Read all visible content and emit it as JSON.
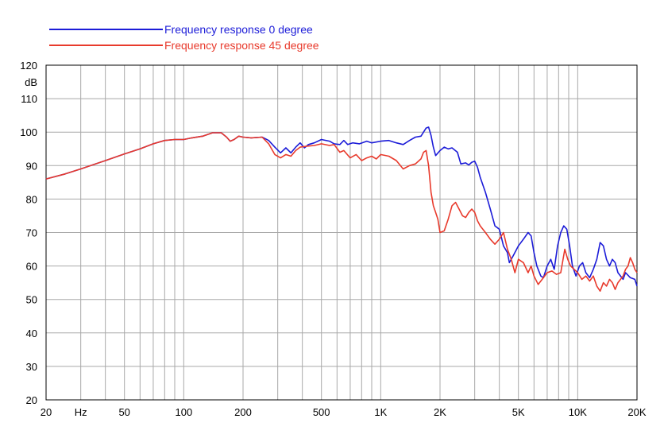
{
  "chart_data": {
    "type": "line",
    "x_scale": "log",
    "xlim": [
      20,
      20000
    ],
    "ylim": [
      20,
      120
    ],
    "y_unit": "dB",
    "grid": true,
    "legend_position": "top-left",
    "x_tick_labels": [
      {
        "value": 20,
        "label": "20"
      },
      {
        "value": 30,
        "label": "Hz"
      },
      {
        "value": 50,
        "label": "50"
      },
      {
        "value": 100,
        "label": "100"
      },
      {
        "value": 200,
        "label": "200"
      },
      {
        "value": 500,
        "label": "500"
      },
      {
        "value": 1000,
        "label": "1K"
      },
      {
        "value": 2000,
        "label": "2K"
      },
      {
        "value": 5000,
        "label": "5K"
      },
      {
        "value": 10000,
        "label": "10K"
      },
      {
        "value": 20000,
        "label": "20K"
      }
    ],
    "y_tick_labels": [
      {
        "value": 20,
        "label": "20"
      },
      {
        "value": 30,
        "label": "30"
      },
      {
        "value": 40,
        "label": "40"
      },
      {
        "value": 50,
        "label": "50"
      },
      {
        "value": 60,
        "label": "60"
      },
      {
        "value": 70,
        "label": "70"
      },
      {
        "value": 80,
        "label": "80"
      },
      {
        "value": 90,
        "label": "90"
      },
      {
        "value": 100,
        "label": "100"
      },
      {
        "value": 110,
        "label": "110"
      },
      {
        "value": 120,
        "label": "120"
      }
    ],
    "series": [
      {
        "name": "Frequency response 0 degree",
        "color": "#1c1cd8",
        "points": [
          [
            20,
            86
          ],
          [
            25,
            87.5
          ],
          [
            30,
            89
          ],
          [
            40,
            91.5
          ],
          [
            50,
            93.5
          ],
          [
            60,
            95
          ],
          [
            70,
            96.5
          ],
          [
            80,
            97.5
          ],
          [
            90,
            97.8
          ],
          [
            100,
            97.8
          ],
          [
            110,
            98.3
          ],
          [
            125,
            98.8
          ],
          [
            140,
            99.8
          ],
          [
            155,
            99.8
          ],
          [
            165,
            98.5
          ],
          [
            172,
            97.3
          ],
          [
            180,
            97.8
          ],
          [
            190,
            98.8
          ],
          [
            200,
            98.5
          ],
          [
            220,
            98.3
          ],
          [
            250,
            98.5
          ],
          [
            270,
            97.5
          ],
          [
            290,
            95.5
          ],
          [
            310,
            93.8
          ],
          [
            330,
            95.3
          ],
          [
            350,
            93.8
          ],
          [
            370,
            95.5
          ],
          [
            390,
            96.8
          ],
          [
            410,
            95.3
          ],
          [
            430,
            96.3
          ],
          [
            460,
            96.8
          ],
          [
            500,
            97.8
          ],
          [
            550,
            97.3
          ],
          [
            580,
            96.5
          ],
          [
            620,
            96.3
          ],
          [
            650,
            97.5
          ],
          [
            680,
            96.3
          ],
          [
            720,
            96.8
          ],
          [
            780,
            96.5
          ],
          [
            850,
            97.3
          ],
          [
            900,
            96.8
          ],
          [
            1000,
            97.3
          ],
          [
            1100,
            97.5
          ],
          [
            1200,
            96.8
          ],
          [
            1300,
            96.3
          ],
          [
            1400,
            97.5
          ],
          [
            1500,
            98.5
          ],
          [
            1600,
            98.8
          ],
          [
            1700,
            101.2
          ],
          [
            1750,
            101.5
          ],
          [
            1800,
            99
          ],
          [
            1850,
            95.5
          ],
          [
            1900,
            93
          ],
          [
            2000,
            94.5
          ],
          [
            2100,
            95.5
          ],
          [
            2200,
            95
          ],
          [
            2300,
            95.3
          ],
          [
            2450,
            94
          ],
          [
            2550,
            90.5
          ],
          [
            2700,
            90.8
          ],
          [
            2800,
            90.2
          ],
          [
            2900,
            91
          ],
          [
            3000,
            91.3
          ],
          [
            3100,
            89.5
          ],
          [
            3200,
            86.5
          ],
          [
            3400,
            82
          ],
          [
            3600,
            77
          ],
          [
            3800,
            72
          ],
          [
            4000,
            71
          ],
          [
            4200,
            66
          ],
          [
            4400,
            64
          ],
          [
            4500,
            61
          ],
          [
            4700,
            63
          ],
          [
            5000,
            66
          ],
          [
            5300,
            68
          ],
          [
            5600,
            70
          ],
          [
            5800,
            69
          ],
          [
            6000,
            64
          ],
          [
            6200,
            60
          ],
          [
            6500,
            57
          ],
          [
            6700,
            56.5
          ],
          [
            7000,
            60
          ],
          [
            7300,
            62
          ],
          [
            7600,
            59
          ],
          [
            7900,
            66
          ],
          [
            8200,
            70
          ],
          [
            8500,
            72
          ],
          [
            8800,
            71
          ],
          [
            9100,
            66
          ],
          [
            9400,
            60
          ],
          [
            9800,
            57
          ],
          [
            10200,
            60
          ],
          [
            10600,
            61
          ],
          [
            11000,
            58
          ],
          [
            11500,
            56.5
          ],
          [
            12000,
            59
          ],
          [
            12500,
            62
          ],
          [
            13000,
            67
          ],
          [
            13500,
            66
          ],
          [
            14000,
            62
          ],
          [
            14500,
            60
          ],
          [
            15000,
            62
          ],
          [
            15500,
            61
          ],
          [
            16000,
            58
          ],
          [
            17000,
            56
          ],
          [
            17500,
            58
          ],
          [
            18500,
            56.5
          ],
          [
            19500,
            56
          ],
          [
            20000,
            54
          ]
        ]
      },
      {
        "name": "Frequency response 45 degree",
        "color": "#e83a2c",
        "points": [
          [
            20,
            86
          ],
          [
            25,
            87.5
          ],
          [
            30,
            89
          ],
          [
            40,
            91.5
          ],
          [
            50,
            93.5
          ],
          [
            60,
            95
          ],
          [
            70,
            96.5
          ],
          [
            80,
            97.5
          ],
          [
            90,
            97.8
          ],
          [
            100,
            97.8
          ],
          [
            110,
            98.3
          ],
          [
            125,
            98.8
          ],
          [
            140,
            99.8
          ],
          [
            155,
            99.8
          ],
          [
            165,
            98.5
          ],
          [
            172,
            97.3
          ],
          [
            180,
            97.8
          ],
          [
            190,
            98.8
          ],
          [
            200,
            98.5
          ],
          [
            220,
            98.3
          ],
          [
            250,
            98.5
          ],
          [
            270,
            96.5
          ],
          [
            290,
            93.3
          ],
          [
            310,
            92.3
          ],
          [
            330,
            93.3
          ],
          [
            350,
            92.8
          ],
          [
            370,
            94.5
          ],
          [
            390,
            95.5
          ],
          [
            420,
            95.8
          ],
          [
            460,
            96
          ],
          [
            500,
            96.5
          ],
          [
            550,
            96
          ],
          [
            580,
            96.3
          ],
          [
            620,
            94
          ],
          [
            650,
            94.5
          ],
          [
            700,
            92.3
          ],
          [
            750,
            93.3
          ],
          [
            800,
            91.5
          ],
          [
            850,
            92.3
          ],
          [
            900,
            92.8
          ],
          [
            950,
            92
          ],
          [
            1000,
            93.3
          ],
          [
            1100,
            92.8
          ],
          [
            1200,
            91.5
          ],
          [
            1300,
            89
          ],
          [
            1400,
            90
          ],
          [
            1500,
            90.5
          ],
          [
            1600,
            92
          ],
          [
            1650,
            94
          ],
          [
            1700,
            94.5
          ],
          [
            1750,
            90
          ],
          [
            1800,
            82
          ],
          [
            1850,
            78
          ],
          [
            1900,
            76
          ],
          [
            1950,
            74
          ],
          [
            2000,
            70
          ],
          [
            2100,
            70.5
          ],
          [
            2200,
            74
          ],
          [
            2300,
            78
          ],
          [
            2400,
            79
          ],
          [
            2500,
            77
          ],
          [
            2600,
            75
          ],
          [
            2700,
            74.5
          ],
          [
            2800,
            76
          ],
          [
            2900,
            77
          ],
          [
            3000,
            76
          ],
          [
            3100,
            73.5
          ],
          [
            3200,
            72
          ],
          [
            3400,
            70
          ],
          [
            3600,
            68
          ],
          [
            3800,
            66.5
          ],
          [
            4000,
            68
          ],
          [
            4200,
            70
          ],
          [
            4400,
            65
          ],
          [
            4600,
            62
          ],
          [
            4800,
            58
          ],
          [
            5000,
            62
          ],
          [
            5300,
            61
          ],
          [
            5600,
            58
          ],
          [
            5800,
            60
          ],
          [
            6000,
            57
          ],
          [
            6300,
            54.5
          ],
          [
            6600,
            56
          ],
          [
            7000,
            58
          ],
          [
            7400,
            58.5
          ],
          [
            7800,
            57.5
          ],
          [
            8200,
            58
          ],
          [
            8600,
            65
          ],
          [
            8900,
            62
          ],
          [
            9200,
            60
          ],
          [
            9600,
            59
          ],
          [
            10000,
            58
          ],
          [
            10500,
            56
          ],
          [
            11000,
            57
          ],
          [
            11500,
            55.5
          ],
          [
            12000,
            57
          ],
          [
            12500,
            54
          ],
          [
            13000,
            52.5
          ],
          [
            13500,
            55
          ],
          [
            14000,
            54
          ],
          [
            14500,
            56
          ],
          [
            15000,
            55
          ],
          [
            15500,
            53
          ],
          [
            16000,
            55
          ],
          [
            17000,
            57
          ],
          [
            17500,
            59
          ],
          [
            18000,
            60
          ],
          [
            18500,
            62.5
          ],
          [
            19000,
            61
          ],
          [
            19500,
            59
          ],
          [
            20000,
            58
          ]
        ]
      }
    ]
  }
}
